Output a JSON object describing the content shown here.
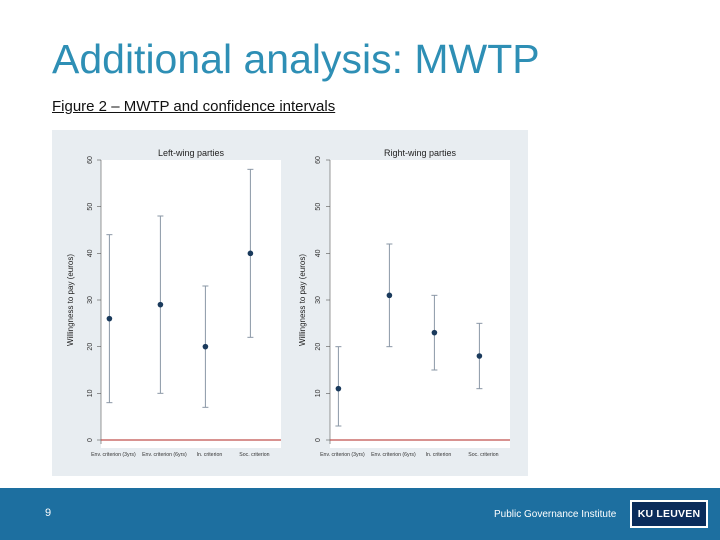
{
  "slide": {
    "title": "Additional analysis: MWTP",
    "caption": "Figure 2 – MWTP and confidence intervals",
    "page_number": "9",
    "footer_text": "Public Governance Institute",
    "logo_text": "KU LEUVEN"
  },
  "colors": {
    "accent": "#2e8fb5",
    "footer": "#1d6fa0",
    "logo": "#0a2c5b",
    "point": "#1a3a5c",
    "zero_line": "#c0504d"
  },
  "chart_data": [
    {
      "type": "scatter",
      "title": "Left-wing parties",
      "ylabel": "Willingness to pay (euros)",
      "xlabel": "",
      "ylim": [
        0,
        60
      ],
      "yticks": [
        0,
        10,
        20,
        30,
        40,
        50,
        60
      ],
      "categories": [
        "Env. criterion (3yrs)",
        "Env. criterion (6yrs)",
        "In. criterion",
        "Soc. criterion"
      ],
      "values": [
        26,
        29,
        20,
        40
      ],
      "ci_low": [
        8,
        10,
        7,
        22
      ],
      "ci_high": [
        44,
        48,
        33,
        58
      ],
      "reference_line": 0
    },
    {
      "type": "scatter",
      "title": "Right-wing parties",
      "ylabel": "Willingness to pay (euros)",
      "xlabel": "",
      "ylim": [
        0,
        60
      ],
      "yticks": [
        0,
        10,
        20,
        30,
        40,
        50,
        60
      ],
      "categories": [
        "Env. criterion (3yrs)",
        "Env. criterion (6yrs)",
        "In. criterion",
        "Soc. criterion"
      ],
      "values": [
        11,
        31,
        23,
        18
      ],
      "ci_low": [
        3,
        20,
        15,
        11
      ],
      "ci_high": [
        20,
        42,
        31,
        25
      ],
      "reference_line": 0
    }
  ]
}
